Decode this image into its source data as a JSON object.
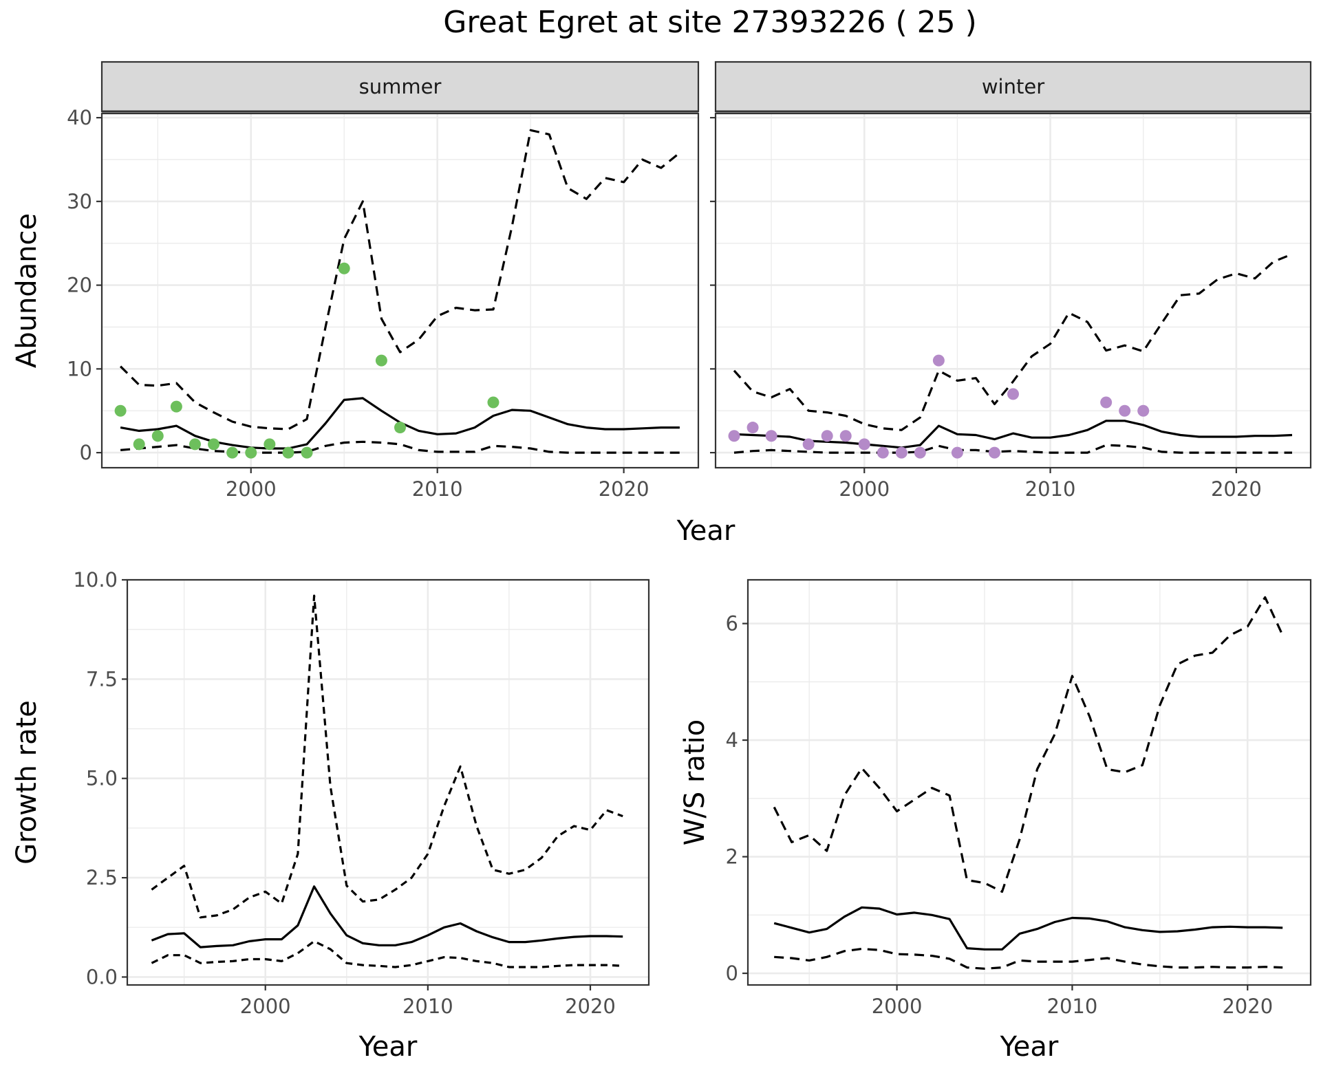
{
  "title": "Great Egret at site 27393226 ( 25 )",
  "colors": {
    "summer_points": "#6dbf5c",
    "winter_points": "#b48ac8",
    "strip_fill": "#d9d9d9",
    "grid": "#ebebeb",
    "line": "#000000"
  },
  "chart_data": [
    {
      "id": "summer",
      "type": "line",
      "panel": "summer",
      "xlabel": "Year",
      "ylabel": "Abundance",
      "xlim": [
        1992,
        2024
      ],
      "ylim": [
        -1.8,
        40.5
      ],
      "xticks": [
        2000,
        2010,
        2020
      ],
      "yticks": [
        0,
        10,
        20,
        30,
        40
      ],
      "grid": true,
      "series": [
        {
          "style": "solid",
          "x": [
            1993,
            1994,
            1995,
            1996,
            1997,
            1998,
            1999,
            2000,
            2001,
            2002,
            2003,
            2004,
            2005,
            2006,
            2007,
            2008,
            2009,
            2010,
            2011,
            2012,
            2013,
            2014,
            2015,
            2016,
            2017,
            2018,
            2019,
            2020,
            2021,
            2022,
            2023
          ],
          "values": [
            3.0,
            2.6,
            2.8,
            3.2,
            2.0,
            1.3,
            0.9,
            0.6,
            0.5,
            0.5,
            1.0,
            3.5,
            6.3,
            6.5,
            5.0,
            3.6,
            2.6,
            2.2,
            2.3,
            3.0,
            4.4,
            5.1,
            5.0,
            4.2,
            3.4,
            3.0,
            2.8,
            2.8,
            2.9,
            3.0,
            3.0
          ]
        },
        {
          "style": "dashed",
          "x": [
            1993,
            1994,
            1995,
            1996,
            1997,
            1998,
            1999,
            2000,
            2001,
            2002,
            2003,
            2004,
            2005,
            2006,
            2007,
            2008,
            2009,
            2010,
            2011,
            2012,
            2013,
            2014,
            2015,
            2016,
            2017,
            2018,
            2019,
            2020,
            2021,
            2022,
            2023
          ],
          "values": [
            10.3,
            8.1,
            8.0,
            8.3,
            6.0,
            4.8,
            3.7,
            3.1,
            2.9,
            2.8,
            4.0,
            15.0,
            25.5,
            30.0,
            16.0,
            12.0,
            13.5,
            16.3,
            17.3,
            17.0,
            17.1,
            27.0,
            38.5,
            38.0,
            31.6,
            30.3,
            32.8,
            32.3,
            35.0,
            34.0,
            35.8
          ]
        },
        {
          "style": "dashed",
          "x": [
            1993,
            1994,
            1995,
            1996,
            1997,
            1998,
            1999,
            2000,
            2001,
            2002,
            2003,
            2004,
            2005,
            2006,
            2007,
            2008,
            2009,
            2010,
            2011,
            2012,
            2013,
            2014,
            2015,
            2016,
            2017,
            2018,
            2019,
            2020,
            2021,
            2022,
            2023
          ],
          "values": [
            0.3,
            0.5,
            0.7,
            0.9,
            0.5,
            0.2,
            0.1,
            0.0,
            0.0,
            0.0,
            0.1,
            0.8,
            1.2,
            1.3,
            1.2,
            1.0,
            0.3,
            0.1,
            0.1,
            0.1,
            0.8,
            0.7,
            0.5,
            0.1,
            0.0,
            0.0,
            0.0,
            0.0,
            0.0,
            0.0,
            0.0
          ]
        }
      ],
      "points": {
        "x": [
          1993,
          1994,
          1995,
          1996,
          1997,
          1998,
          1999,
          2000,
          2001,
          2002,
          2003,
          2005,
          2007,
          2008,
          2013
        ],
        "values": [
          5,
          1,
          2,
          5.5,
          1,
          1,
          0,
          0,
          1,
          0,
          0,
          22,
          11,
          3,
          6
        ]
      }
    },
    {
      "id": "winter",
      "type": "line",
      "panel": "winter",
      "xlabel": "Year",
      "ylabel": "Abundance",
      "xlim": [
        1992,
        2024
      ],
      "ylim": [
        -1.8,
        40.5
      ],
      "xticks": [
        2000,
        2010,
        2020
      ],
      "yticks": [
        0,
        10,
        20,
        30,
        40
      ],
      "grid": true,
      "series": [
        {
          "style": "solid",
          "x": [
            1993,
            1994,
            1995,
            1996,
            1997,
            1998,
            1999,
            2000,
            2001,
            2002,
            2003,
            2004,
            2005,
            2006,
            2007,
            2008,
            2009,
            2010,
            2011,
            2012,
            2013,
            2014,
            2015,
            2016,
            2017,
            2018,
            2019,
            2020,
            2021,
            2022,
            2023
          ],
          "values": [
            2.2,
            2.1,
            2.0,
            1.9,
            1.4,
            1.3,
            1.2,
            1.0,
            0.8,
            0.6,
            0.9,
            3.2,
            2.2,
            2.1,
            1.6,
            2.3,
            1.8,
            1.8,
            2.1,
            2.7,
            3.8,
            3.8,
            3.3,
            2.5,
            2.1,
            1.9,
            1.9,
            1.9,
            2.0,
            2.0,
            2.1
          ]
        },
        {
          "style": "dashed",
          "x": [
            1993,
            1994,
            1995,
            1996,
            1997,
            1998,
            1999,
            2000,
            2001,
            2002,
            2003,
            2004,
            2005,
            2006,
            2007,
            2008,
            2009,
            2010,
            2011,
            2012,
            2013,
            2014,
            2015,
            2016,
            2017,
            2018,
            2019,
            2020,
            2021,
            2022,
            2023
          ],
          "values": [
            9.8,
            7.3,
            6.6,
            7.6,
            5.0,
            4.8,
            4.4,
            3.4,
            2.9,
            2.7,
            4.2,
            9.8,
            8.6,
            8.9,
            5.8,
            8.5,
            11.5,
            13.0,
            16.7,
            15.6,
            12.2,
            12.8,
            12.1,
            15.5,
            18.8,
            19.0,
            20.7,
            21.4,
            20.8,
            22.8,
            23.7
          ]
        },
        {
          "style": "dashed",
          "x": [
            1993,
            1994,
            1995,
            1996,
            1997,
            1998,
            1999,
            2000,
            2001,
            2002,
            2003,
            2004,
            2005,
            2006,
            2007,
            2008,
            2009,
            2010,
            2011,
            2012,
            2013,
            2014,
            2015,
            2016,
            2017,
            2018,
            2019,
            2020,
            2021,
            2022,
            2023
          ],
          "values": [
            0.0,
            0.2,
            0.3,
            0.2,
            0.1,
            0.0,
            0.0,
            0.0,
            0.0,
            0.0,
            0.1,
            0.8,
            0.3,
            0.3,
            0.1,
            0.2,
            0.1,
            0.0,
            0.0,
            0.0,
            0.9,
            0.8,
            0.6,
            0.1,
            0.0,
            0.0,
            0.0,
            0.0,
            0.0,
            0.0,
            0.0
          ]
        }
      ],
      "points": {
        "x": [
          1993,
          1994,
          1995,
          1997,
          1998,
          1999,
          2000,
          2001,
          2002,
          2003,
          2004,
          2005,
          2007,
          2008,
          2013,
          2014,
          2015
        ],
        "values": [
          2,
          3,
          2,
          1,
          2,
          2,
          1,
          0,
          0,
          0,
          11,
          0,
          0,
          7,
          6,
          5,
          5
        ]
      }
    },
    {
      "id": "growth",
      "type": "line",
      "xlabel": "Year",
      "ylabel": "Growth rate",
      "xlim": [
        1991.5,
        2023.6
      ],
      "ylim": [
        -0.2,
        10.0
      ],
      "xticks": [
        2000,
        2010,
        2020
      ],
      "yticks": [
        0.0,
        2.5,
        5.0,
        7.5,
        10.0
      ],
      "ytick_labels": [
        "0.0",
        "2.5",
        "5.0",
        "7.5",
        "10.0"
      ],
      "grid": true,
      "series": [
        {
          "style": "solid",
          "x": [
            1993,
            1994,
            1995,
            1996,
            1997,
            1998,
            1999,
            2000,
            2001,
            2002,
            2003,
            2004,
            2005,
            2006,
            2007,
            2008,
            2009,
            2010,
            2011,
            2012,
            2013,
            2014,
            2015,
            2016,
            2017,
            2018,
            2019,
            2020,
            2021,
            2022
          ],
          "values": [
            0.92,
            1.08,
            1.1,
            0.75,
            0.78,
            0.8,
            0.9,
            0.95,
            0.95,
            1.3,
            2.28,
            1.6,
            1.05,
            0.85,
            0.8,
            0.8,
            0.88,
            1.05,
            1.25,
            1.35,
            1.15,
            1.0,
            0.88,
            0.88,
            0.92,
            0.97,
            1.01,
            1.03,
            1.03,
            1.02
          ]
        },
        {
          "style": "dashed",
          "x": [
            1993,
            1994,
            1995,
            1996,
            1997,
            1998,
            1999,
            2000,
            2001,
            2002,
            2003,
            2004,
            2005,
            2006,
            2007,
            2008,
            2009,
            2010,
            2011,
            2012,
            2013,
            2014,
            2015,
            2016,
            2017,
            2018,
            2019,
            2020,
            2021,
            2022
          ],
          "values": [
            2.2,
            2.5,
            2.8,
            1.5,
            1.55,
            1.7,
            2.0,
            2.15,
            1.85,
            3.1,
            9.6,
            4.8,
            2.3,
            1.9,
            1.95,
            2.2,
            2.5,
            3.1,
            4.3,
            5.3,
            3.8,
            2.7,
            2.6,
            2.7,
            3.0,
            3.55,
            3.8,
            3.7,
            4.2,
            4.05
          ]
        },
        {
          "style": "dashed",
          "x": [
            1993,
            1994,
            1995,
            1996,
            1997,
            1998,
            1999,
            2000,
            2001,
            2002,
            2003,
            2004,
            2005,
            2006,
            2007,
            2008,
            2009,
            2010,
            2011,
            2012,
            2013,
            2014,
            2015,
            2016,
            2017,
            2018,
            2019,
            2020,
            2021,
            2022
          ],
          "values": [
            0.35,
            0.55,
            0.55,
            0.35,
            0.38,
            0.4,
            0.45,
            0.45,
            0.4,
            0.6,
            0.9,
            0.7,
            0.35,
            0.3,
            0.28,
            0.25,
            0.3,
            0.4,
            0.5,
            0.48,
            0.4,
            0.35,
            0.25,
            0.25,
            0.25,
            0.28,
            0.3,
            0.3,
            0.3,
            0.28
          ]
        }
      ]
    },
    {
      "id": "ratio",
      "type": "line",
      "xlabel": "Year",
      "ylabel": "W/S ratio",
      "xlim": [
        1991.5,
        2023.6
      ],
      "ylim": [
        -0.2,
        6.75
      ],
      "xticks": [
        2000,
        2010,
        2020
      ],
      "yticks": [
        0,
        2,
        4,
        6
      ],
      "grid": true,
      "series": [
        {
          "style": "solid",
          "x": [
            1993,
            1994,
            1995,
            1996,
            1997,
            1998,
            1999,
            2000,
            2001,
            2002,
            2003,
            2004,
            2005,
            2006,
            2007,
            2008,
            2009,
            2010,
            2011,
            2012,
            2013,
            2014,
            2015,
            2016,
            2017,
            2018,
            2019,
            2020,
            2021,
            2022
          ],
          "values": [
            0.86,
            0.78,
            0.7,
            0.76,
            0.97,
            1.13,
            1.11,
            1.01,
            1.04,
            1.0,
            0.93,
            0.43,
            0.41,
            0.41,
            0.68,
            0.76,
            0.88,
            0.95,
            0.94,
            0.89,
            0.79,
            0.74,
            0.71,
            0.72,
            0.75,
            0.79,
            0.8,
            0.79,
            0.79,
            0.78
          ]
        },
        {
          "style": "dashed",
          "x": [
            1993,
            1994,
            1995,
            1996,
            1997,
            1998,
            1999,
            2000,
            2001,
            2002,
            2003,
            2004,
            2005,
            2006,
            2007,
            2008,
            2009,
            2010,
            2011,
            2012,
            2013,
            2014,
            2015,
            2016,
            2017,
            2018,
            2019,
            2020,
            2021,
            2022
          ],
          "values": [
            2.85,
            2.25,
            2.37,
            2.1,
            3.05,
            3.52,
            3.18,
            2.78,
            2.98,
            3.18,
            3.05,
            1.6,
            1.55,
            1.4,
            2.3,
            3.5,
            4.1,
            5.1,
            4.4,
            3.5,
            3.45,
            3.57,
            4.6,
            5.3,
            5.45,
            5.5,
            5.8,
            5.95,
            6.45,
            5.8
          ]
        },
        {
          "style": "dashed",
          "x": [
            1993,
            1994,
            1995,
            1996,
            1997,
            1998,
            1999,
            2000,
            2001,
            2002,
            2003,
            2004,
            2005,
            2006,
            2007,
            2008,
            2009,
            2010,
            2011,
            2012,
            2013,
            2014,
            2015,
            2016,
            2017,
            2018,
            2019,
            2020,
            2021,
            2022
          ],
          "values": [
            0.28,
            0.26,
            0.22,
            0.28,
            0.38,
            0.42,
            0.4,
            0.33,
            0.32,
            0.3,
            0.25,
            0.1,
            0.08,
            0.1,
            0.22,
            0.2,
            0.2,
            0.2,
            0.23,
            0.26,
            0.2,
            0.15,
            0.12,
            0.1,
            0.1,
            0.11,
            0.1,
            0.1,
            0.11,
            0.1
          ]
        }
      ]
    }
  ]
}
